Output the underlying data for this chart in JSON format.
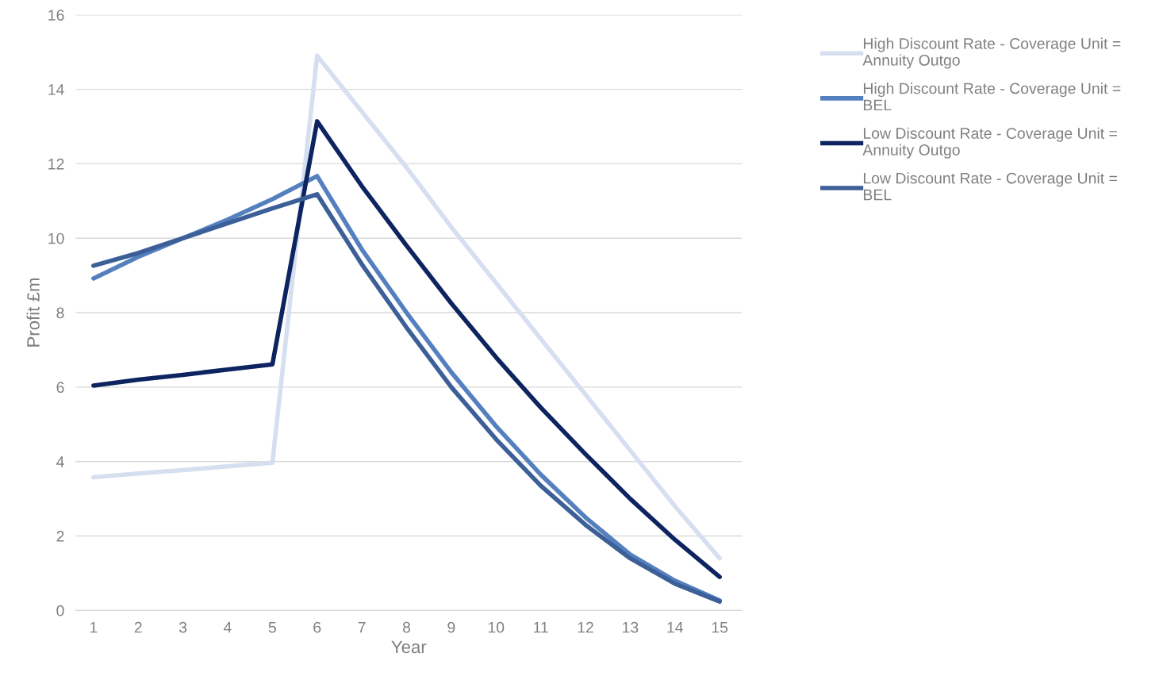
{
  "chart_data": {
    "type": "line",
    "xlabel": "Year",
    "ylabel": "Profit £m",
    "categories": [
      "1",
      "2",
      "3",
      "4",
      "5",
      "6",
      "7",
      "8",
      "9",
      "10",
      "11",
      "12",
      "13",
      "14",
      "15"
    ],
    "series": [
      {
        "name": "High Discount Rate - Coverage Unit = Annuity Outgo",
        "color": "#d6dff0",
        "values": [
          3.58,
          3.68,
          3.77,
          3.87,
          3.97,
          14.9,
          13.4,
          11.9,
          10.3,
          8.8,
          7.3,
          5.8,
          4.3,
          2.8,
          1.4
        ]
      },
      {
        "name": "High Discount Rate - Coverage Unit = BEL",
        "color": "#5580c0",
        "values": [
          8.92,
          9.5,
          10.0,
          10.5,
          11.05,
          11.67,
          9.7,
          8.0,
          6.4,
          4.95,
          3.65,
          2.5,
          1.5,
          0.8,
          0.27
        ]
      },
      {
        "name": "Low Discount Rate - Coverage Unit = Annuity Outgo",
        "color": "#0d2460",
        "values": [
          6.04,
          6.2,
          6.33,
          6.47,
          6.61,
          13.14,
          11.4,
          9.8,
          8.25,
          6.8,
          5.45,
          4.2,
          3.0,
          1.9,
          0.9
        ]
      },
      {
        "name": "Low Discount Rate - Coverage Unit = BEL",
        "color": "#3c5f98",
        "values": [
          9.26,
          9.6,
          10.0,
          10.4,
          10.8,
          11.18,
          9.3,
          7.6,
          6.0,
          4.6,
          3.35,
          2.3,
          1.4,
          0.72,
          0.24
        ]
      }
    ],
    "ylim": [
      0,
      16
    ],
    "yticks": [
      0,
      2,
      4,
      6,
      8,
      10,
      12,
      14,
      16
    ],
    "grid": "y",
    "legend": "right",
    "marker": "none",
    "line_style": "solid"
  }
}
